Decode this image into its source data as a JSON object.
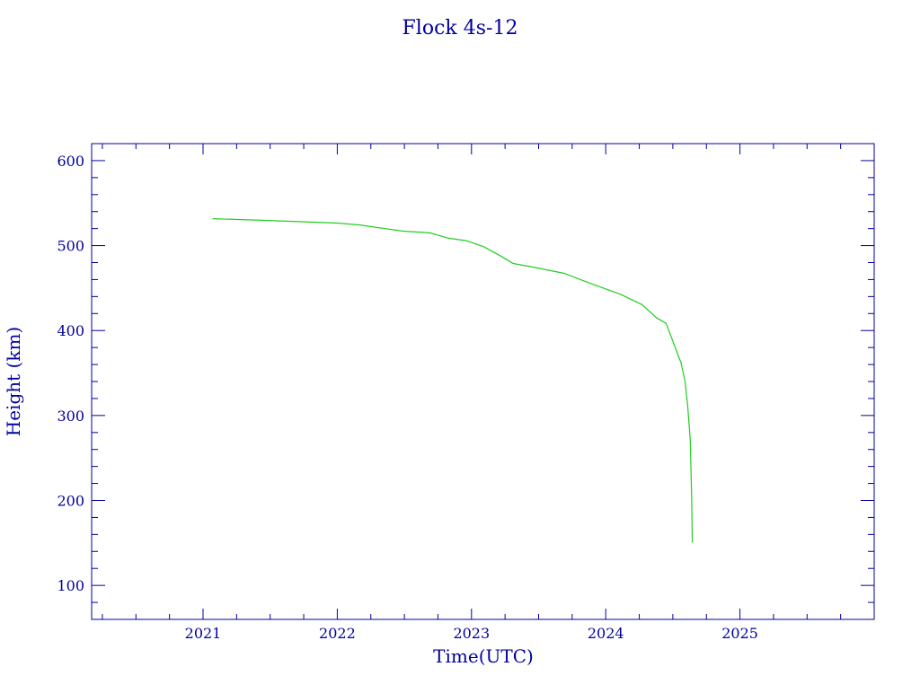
{
  "chart_data": {
    "type": "line",
    "title": "Flock 4s-12",
    "xlabel": "Time(UTC)",
    "ylabel": "Height (km)",
    "xlim": [
      2020.17,
      2026.0
    ],
    "ylim": [
      60,
      620
    ],
    "x_ticks": [
      2021,
      2022,
      2023,
      2024,
      2025
    ],
    "y_ticks": [
      100,
      200,
      300,
      400,
      500,
      600
    ],
    "grid": false,
    "colors": {
      "axis": "#0000a0",
      "line": "#22cc22"
    },
    "series": [
      {
        "x": [
          2021.07,
          2021.49,
          2022.0,
          2022.16,
          2022.49,
          2022.69,
          2022.83,
          2022.96,
          2023.09,
          2023.23,
          2023.31,
          2023.47,
          2023.69,
          2023.91,
          2024.11,
          2024.27,
          2024.38,
          2024.45,
          2024.51,
          2024.56,
          2024.59,
          2024.61,
          2024.63,
          2024.64,
          2024.645
        ],
        "y": [
          531.7,
          529.6,
          526.5,
          524.4,
          517,
          515,
          508.6,
          505.8,
          498.8,
          486.6,
          478.9,
          474.3,
          467.3,
          454,
          442.7,
          430.5,
          414.8,
          408.5,
          383.3,
          362.3,
          341.3,
          313.2,
          271,
          205,
          150.4
        ]
      }
    ]
  }
}
